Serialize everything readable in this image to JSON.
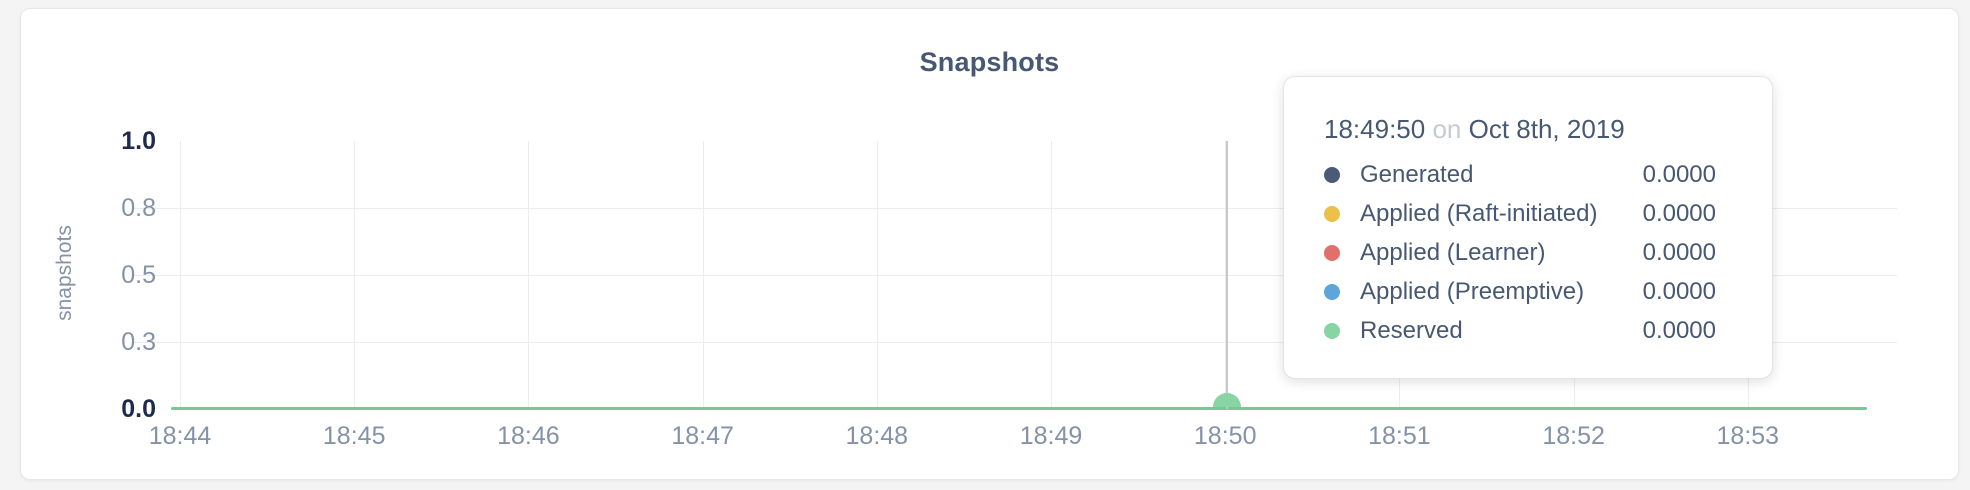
{
  "card_title": "Snapshots",
  "chart_data": {
    "type": "line",
    "title": "Snapshots",
    "xlabel": "",
    "ylabel": "snapshots",
    "ylim": [
      0,
      1
    ],
    "grid": true,
    "legend_position": "tooltip",
    "x_ticks": [
      "18:44",
      "18:45",
      "18:46",
      "18:47",
      "18:48",
      "18:49",
      "18:50",
      "18:51",
      "18:52",
      "18:53"
    ],
    "y_ticks": [
      {
        "label": "1.0",
        "value": 1.0,
        "emphasis": true
      },
      {
        "label": "0.8",
        "value": 0.75,
        "emphasis": false
      },
      {
        "label": "0.5",
        "value": 0.5,
        "emphasis": false
      },
      {
        "label": "0.3",
        "value": 0.25,
        "emphasis": false
      },
      {
        "label": "0.0",
        "value": 0.0,
        "emphasis": true
      }
    ],
    "series": [
      {
        "name": "Generated",
        "color": "#4a5a77",
        "values": [
          0,
          0,
          0,
          0,
          0,
          0,
          0,
          0,
          0,
          0
        ]
      },
      {
        "name": "Applied (Raft-initiated)",
        "color": "#edc04a",
        "values": [
          0,
          0,
          0,
          0,
          0,
          0,
          0,
          0,
          0,
          0
        ]
      },
      {
        "name": "Applied (Learner)",
        "color": "#e1706c",
        "values": [
          0,
          0,
          0,
          0,
          0,
          0,
          0,
          0,
          0,
          0
        ]
      },
      {
        "name": "Applied (Preemptive)",
        "color": "#5ea5d9",
        "values": [
          0,
          0,
          0,
          0,
          0,
          0,
          0,
          0,
          0,
          0
        ]
      },
      {
        "name": "Reserved",
        "color": "#72cb96",
        "values": [
          0,
          0,
          0,
          0,
          0,
          0,
          0,
          0,
          0,
          0
        ]
      }
    ],
    "hover_x": "18:49:50"
  },
  "tooltip": {
    "time": "18:49:50",
    "connector": "on",
    "date": "Oct 8th, 2019",
    "rows": [
      {
        "label": "Generated",
        "value": "0.0000",
        "color": "#4a5a77"
      },
      {
        "label": "Applied (Raft-initiated)",
        "value": "0.0000",
        "color": "#edc04a"
      },
      {
        "label": "Applied (Learner)",
        "value": "0.0000",
        "color": "#e1706c"
      },
      {
        "label": "Applied (Preemptive)",
        "value": "0.0000",
        "color": "#5ea5d9"
      },
      {
        "label": "Reserved",
        "value": "0.0000",
        "color": "#88d4a2"
      }
    ]
  },
  "colors": {
    "visible_line": "#72cb96",
    "hover_dot": "#88d4a2",
    "crosshair": "#c8c8c8",
    "grid": "#ececee",
    "axis_label": "#8492a8",
    "axis_label_emphasis": "#1f2b4d",
    "title": "#475872"
  }
}
